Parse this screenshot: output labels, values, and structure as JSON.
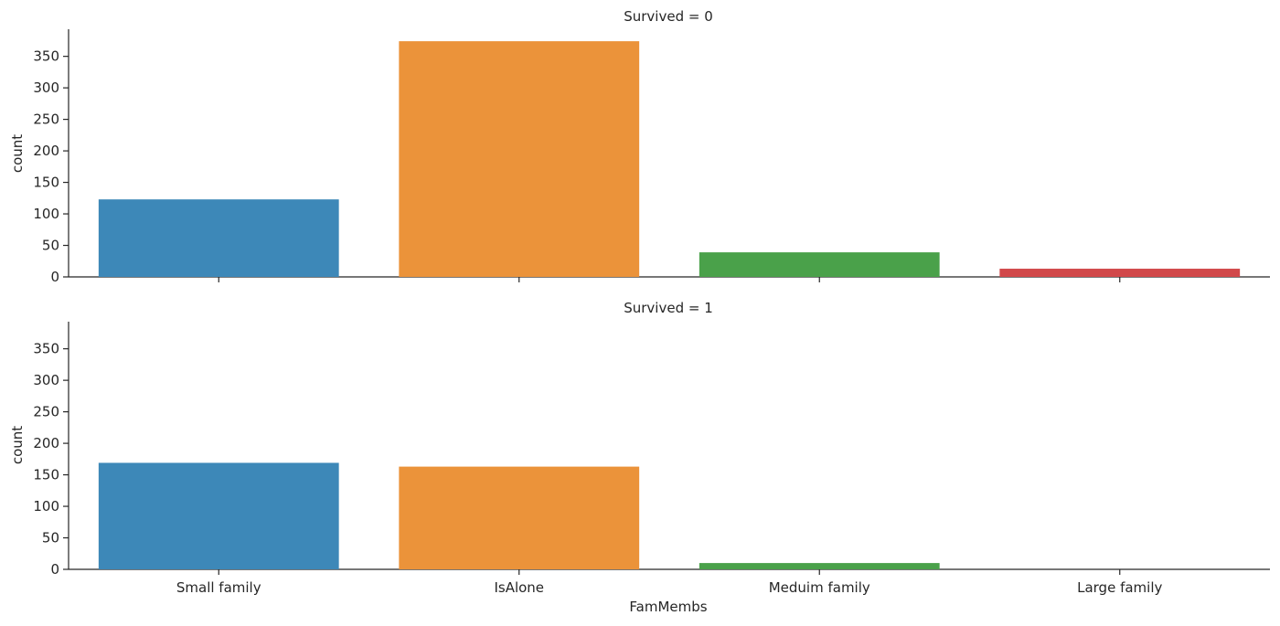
{
  "chart_data": {
    "type": "bar",
    "xlabel": "FamMembs",
    "ylabel": "count",
    "ylim": [
      0,
      393
    ],
    "yticks": [
      0,
      50,
      100,
      150,
      200,
      250,
      300,
      350
    ],
    "categories": [
      "Small family",
      "IsAlone",
      "Meduim family",
      "Large family"
    ],
    "colors": [
      "#3d88b8",
      "#eb933a",
      "#4aa14a",
      "#d1484a"
    ],
    "grid": false,
    "legend": "none",
    "panels": [
      {
        "title": "Survived = 0",
        "values": [
          123,
          374,
          39,
          13
        ]
      },
      {
        "title": "Survived = 1",
        "values": [
          169,
          163,
          10,
          0
        ]
      }
    ]
  }
}
